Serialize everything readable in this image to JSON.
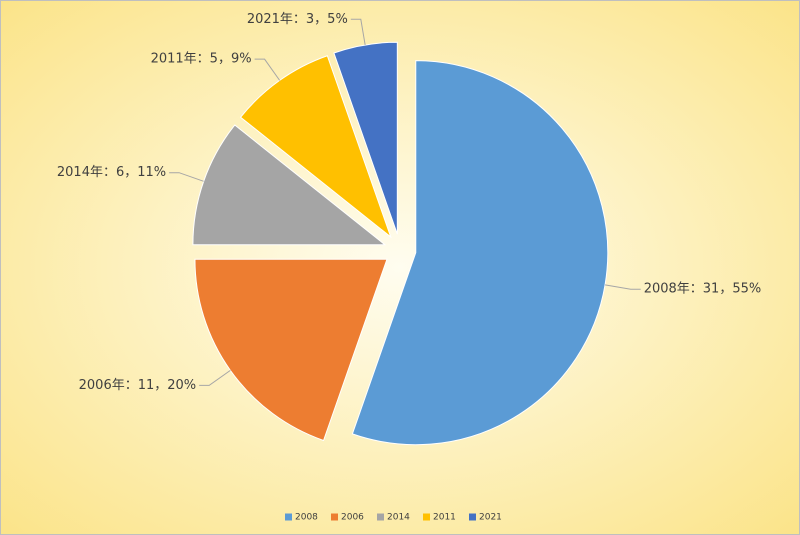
{
  "chart_data": {
    "type": "pie",
    "categories": [
      "2008",
      "2006",
      "2014",
      "2011",
      "2021"
    ],
    "values": [
      31,
      11,
      6,
      5,
      3
    ],
    "value_labels": [
      "2008年：31，55%",
      "2006年：11，20%",
      "2014年：6，11%",
      "2011年：5，9%",
      "2021年：3，5%"
    ],
    "colors": [
      "#5b9bd5",
      "#ed7d31",
      "#a5a5a5",
      "#ffc000",
      "#4472c4"
    ],
    "exploded": true,
    "legend": "bottom"
  }
}
